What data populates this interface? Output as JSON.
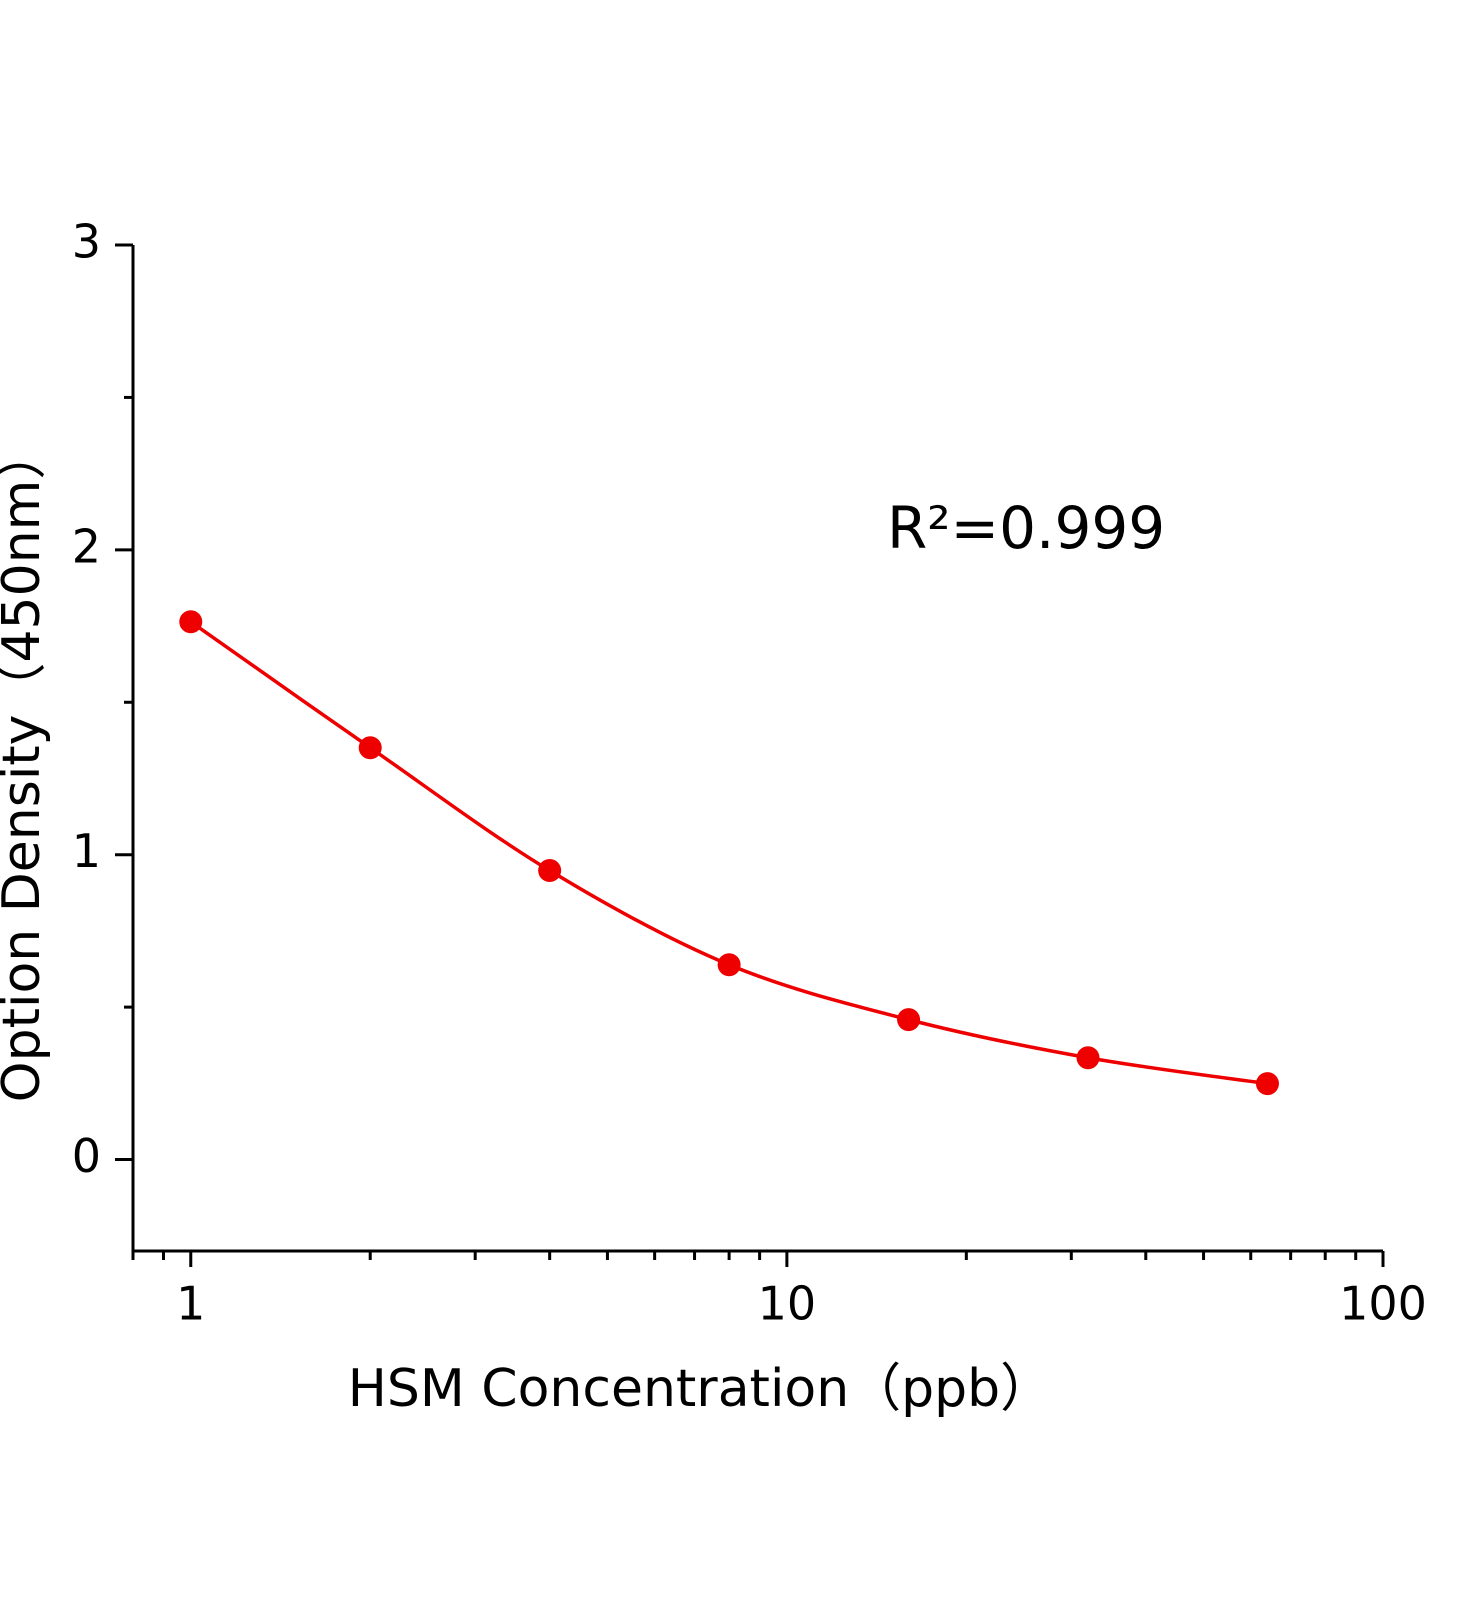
{
  "chart_data": {
    "type": "line",
    "x_label": "HSM  Concentration（ppb）",
    "y_label": "Option Density（450nm）",
    "annotation": "R²=0.999",
    "x": [
      1,
      2,
      4,
      8,
      16,
      32,
      64
    ],
    "series": [
      {
        "color": "#ee0000",
        "values": [
          1.764,
          1.351,
          0.948,
          0.639,
          0.459,
          0.334,
          0.249
        ]
      }
    ],
    "x_log": true,
    "xlim": [
      0.8,
      100
    ],
    "xticks": [
      1,
      10,
      100
    ],
    "ylim": [
      -0.3,
      3
    ],
    "yticks": [
      0,
      1,
      2,
      3
    ],
    "smooth": true,
    "markers": true,
    "grid": false
  }
}
